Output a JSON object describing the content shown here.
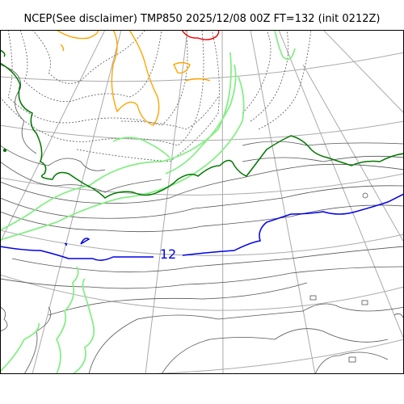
{
  "title": "NCEP(See disclaimer) TMP850 2025/12/08 00Z FT=132 (init 0212Z)",
  "map": {
    "contour_label": "12",
    "colors": {
      "highlight_contour": "#0000ee",
      "zero_contour": "#007700",
      "light_green": "#86ee86",
      "orange": "#ffa500",
      "red": "#ee0000",
      "grid": "#aaaaaa",
      "isotherm": "#555555"
    }
  }
}
